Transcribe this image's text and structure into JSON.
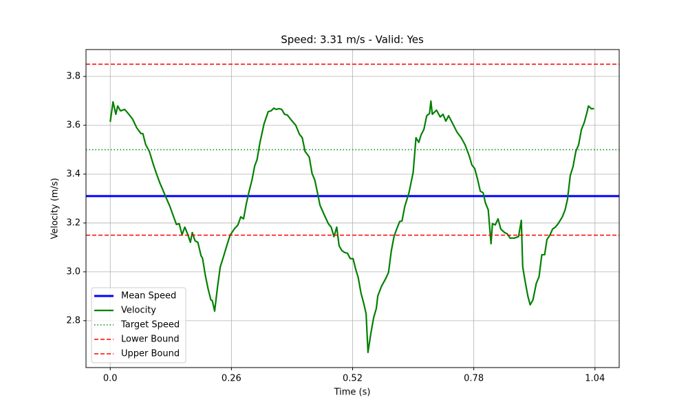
{
  "chart_data": {
    "type": "line",
    "title": "Speed: 3.31 m/s - Valid: Yes",
    "xlabel": "Time (s)",
    "ylabel": "Velocity (m/s)",
    "xlim": [
      -0.052,
      1.092
    ],
    "ylim": [
      2.608,
      3.91
    ],
    "xticks": [
      {
        "value": 0,
        "label": "0.0"
      },
      0.26,
      0.52,
      0.78,
      1.04
    ],
    "yticks": [
      2.8,
      {
        "value": 3,
        "label": "3.0"
      },
      3.2,
      3.4,
      3.6,
      3.8
    ],
    "grid": true,
    "legend": "lower left",
    "x": [
      0,
      0.006,
      0.012,
      0.016,
      0.022,
      0.031,
      0.04,
      0.048,
      0.057,
      0.066,
      0.07,
      0.076,
      0.084,
      0.092,
      0.098,
      0.106,
      0.113,
      0.119,
      0.128,
      0.136,
      0.142,
      0.148,
      0.154,
      0.16,
      0.166,
      0.172,
      0.176,
      0.182,
      0.188,
      0.195,
      0.198,
      0.204,
      0.21,
      0.216,
      0.219,
      0.224,
      0.23,
      0.236,
      0.242,
      0.251,
      0.257,
      0.266,
      0.274,
      0.28,
      0.286,
      0.292,
      0.298,
      0.304,
      0.31,
      0.315,
      0.321,
      0.33,
      0.339,
      0.345,
      0.351,
      0.356,
      0.362,
      0.368,
      0.374,
      0.38,
      0.389,
      0.398,
      0.406,
      0.412,
      0.418,
      0.427,
      0.433,
      0.439,
      0.444,
      0.45,
      0.459,
      0.468,
      0.474,
      0.48,
      0.486,
      0.491,
      0.497,
      0.503,
      0.509,
      0.515,
      0.521,
      0.527,
      0.532,
      0.538,
      0.544,
      0.549,
      0.553,
      0.559,
      0.565,
      0.571,
      0.574,
      0.582,
      0.591,
      0.597,
      0.603,
      0.609,
      0.615,
      0.621,
      0.626,
      0.632,
      0.641,
      0.65,
      0.656,
      0.662,
      0.667,
      0.673,
      0.679,
      0.685,
      0.688,
      0.691,
      0.7,
      0.708,
      0.714,
      0.72,
      0.726,
      0.735,
      0.744,
      0.753,
      0.761,
      0.77,
      0.776,
      0.782,
      0.788,
      0.794,
      0.8,
      0.805,
      0.811,
      0.817,
      0.82,
      0.826,
      0.832,
      0.838,
      0.846,
      0.852,
      0.858,
      0.867,
      0.876,
      0.882,
      0.885,
      0.89,
      0.896,
      0.901,
      0.907,
      0.914,
      0.92,
      0.926,
      0.932,
      0.937,
      0.943,
      0.949,
      0.955,
      0.961,
      0.97,
      0.976,
      0.981,
      0.987,
      0.993,
      0.999,
      1.005,
      1.011,
      1.017,
      1.023,
      1.026,
      1.032,
      1.038
    ],
    "series": [
      {
        "name": "Mean Speed",
        "color": "#0000ff",
        "style": "solid",
        "width": 3,
        "value": 3.31
      },
      {
        "name": "Velocity",
        "color": "#008000",
        "style": "solid",
        "width": 2.2,
        "values": [
          3.614,
          3.696,
          3.645,
          3.679,
          3.659,
          3.665,
          3.645,
          3.625,
          3.589,
          3.566,
          3.566,
          3.521,
          3.493,
          3.442,
          3.408,
          3.366,
          3.335,
          3.307,
          3.268,
          3.225,
          3.194,
          3.197,
          3.152,
          3.183,
          3.155,
          3.121,
          3.161,
          3.127,
          3.121,
          3.065,
          3.056,
          2.986,
          2.93,
          2.885,
          2.882,
          2.839,
          2.935,
          3.02,
          3.056,
          3.113,
          3.149,
          3.175,
          3.192,
          3.225,
          3.217,
          3.279,
          3.33,
          3.375,
          3.434,
          3.459,
          3.527,
          3.606,
          3.656,
          3.659,
          3.67,
          3.665,
          3.668,
          3.665,
          3.645,
          3.642,
          3.62,
          3.6,
          3.563,
          3.549,
          3.493,
          3.47,
          3.403,
          3.375,
          3.33,
          3.273,
          3.234,
          3.197,
          3.183,
          3.144,
          3.183,
          3.107,
          3.087,
          3.079,
          3.076,
          3.054,
          3.054,
          3.008,
          2.977,
          2.913,
          2.87,
          2.828,
          2.67,
          2.746,
          2.811,
          2.851,
          2.901,
          2.941,
          2.972,
          2.997,
          3.085,
          3.146,
          3.177,
          3.206,
          3.208,
          3.268,
          3.324,
          3.408,
          3.549,
          3.53,
          3.561,
          3.583,
          3.639,
          3.648,
          3.699,
          3.645,
          3.662,
          3.634,
          3.645,
          3.617,
          3.639,
          3.606,
          3.572,
          3.549,
          3.521,
          3.476,
          3.437,
          3.423,
          3.38,
          3.33,
          3.324,
          3.282,
          3.254,
          3.115,
          3.197,
          3.192,
          3.217,
          3.175,
          3.161,
          3.155,
          3.138,
          3.138,
          3.144,
          3.211,
          3.02,
          2.963,
          2.901,
          2.865,
          2.885,
          2.952,
          2.98,
          3.07,
          3.07,
          3.132,
          3.149,
          3.175,
          3.183,
          3.197,
          3.225,
          3.254,
          3.296,
          3.394,
          3.431,
          3.493,
          3.521,
          3.583,
          3.611,
          3.654,
          3.679,
          3.668,
          3.668
        ]
      },
      {
        "name": "Target Speed",
        "color": "#008000",
        "style": "dotted",
        "width": 1.5,
        "value": 3.5
      },
      {
        "name": "Lower Bound",
        "color": "#ff0000",
        "style": "dashed",
        "width": 1.5,
        "value": 3.15
      },
      {
        "name": "Upper Bound",
        "color": "#ff0000",
        "style": "dashed",
        "width": 1.5,
        "value": 3.85
      }
    ]
  }
}
